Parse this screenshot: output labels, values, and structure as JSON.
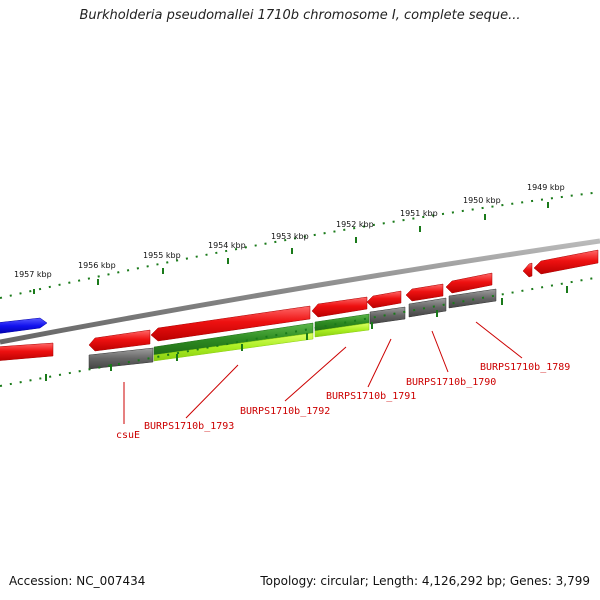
{
  "title": "Burkholderia pseudomallei 1710b chromosome I, complete seque...",
  "accession": "Accession: NC_007434",
  "summary": "Topology: circular; Length: 4,126,292 bp; Genes: 3,799",
  "scale_labels": [
    "1957 kbp",
    "1956 kbp",
    "1955 kbp",
    "1954 kbp",
    "1953 kbp",
    "1952 kbp",
    "1951 kbp",
    "1950 kbp",
    "1949 kbp"
  ],
  "gene_labels": [
    "csuE",
    "BURPS1710b_1793",
    "BURPS1710b_1792",
    "BURPS1710b_1791",
    "BURPS1710b_1790",
    "BURPS1710b_1789"
  ],
  "colors": {
    "forward_cds": "#ee1111",
    "reverse_cds": "#ee1111",
    "gray_feature": "#666666",
    "green_feature": "#2e8b22",
    "lime_feature": "#aaee22",
    "blue_feature": "#1111ee",
    "backbone": "#888888",
    "tick": "#1a7a1a",
    "label_line": "#cc0000"
  }
}
